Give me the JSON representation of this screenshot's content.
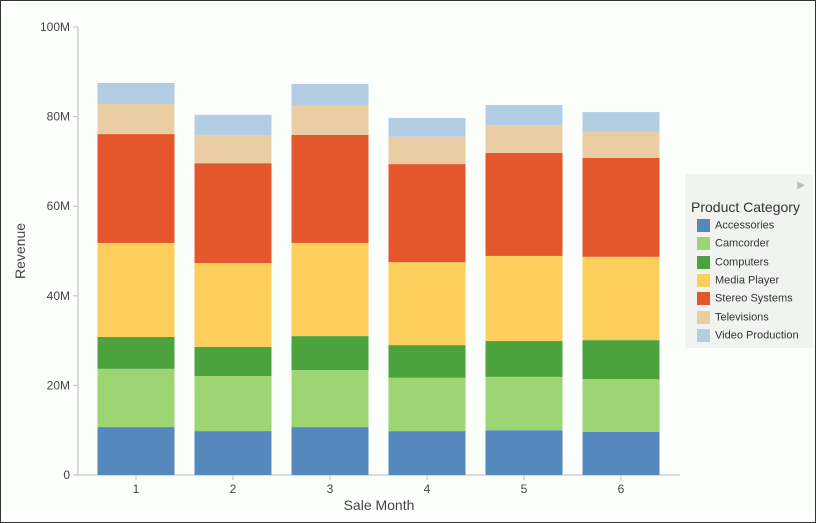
{
  "chart_data": {
    "type": "bar",
    "stacked": true,
    "xlabel": "Sale Month",
    "ylabel": "Revenue",
    "categories": [
      "1",
      "2",
      "3",
      "4",
      "5",
      "6"
    ],
    "ylim": [
      0,
      100000000
    ],
    "yticks": [
      "0",
      "20M",
      "40M",
      "60M",
      "80M",
      "100M"
    ],
    "grid": false,
    "legend_title": "Product Category",
    "legend_position": "right",
    "series": [
      {
        "name": "Accessories",
        "color": "#5589bd",
        "values": [
          10.7,
          9.8,
          10.7,
          9.8,
          10.0,
          9.6
        ]
      },
      {
        "name": "Camcorder",
        "color": "#9dd574",
        "values": [
          13.0,
          12.3,
          12.7,
          11.9,
          11.9,
          11.8
        ]
      },
      {
        "name": "Computers",
        "color": "#4ca33d",
        "values": [
          7.1,
          6.5,
          7.6,
          7.3,
          8.0,
          8.7
        ]
      },
      {
        "name": "Media Player",
        "color": "#fcce5b",
        "values": [
          21.0,
          18.7,
          20.8,
          18.5,
          19.0,
          18.6
        ]
      },
      {
        "name": "Stereo Systems",
        "color": "#e4572c",
        "values": [
          24.3,
          22.3,
          24.1,
          21.9,
          23.0,
          22.1
        ]
      },
      {
        "name": "Televisions",
        "color": "#ebcda3",
        "values": [
          6.7,
          6.3,
          6.5,
          6.1,
          6.2,
          5.8
        ]
      },
      {
        "name": "Video Production",
        "color": "#b3cde4",
        "values": [
          4.7,
          4.5,
          4.9,
          4.2,
          4.5,
          4.4
        ]
      }
    ],
    "value_unit": "millions"
  }
}
